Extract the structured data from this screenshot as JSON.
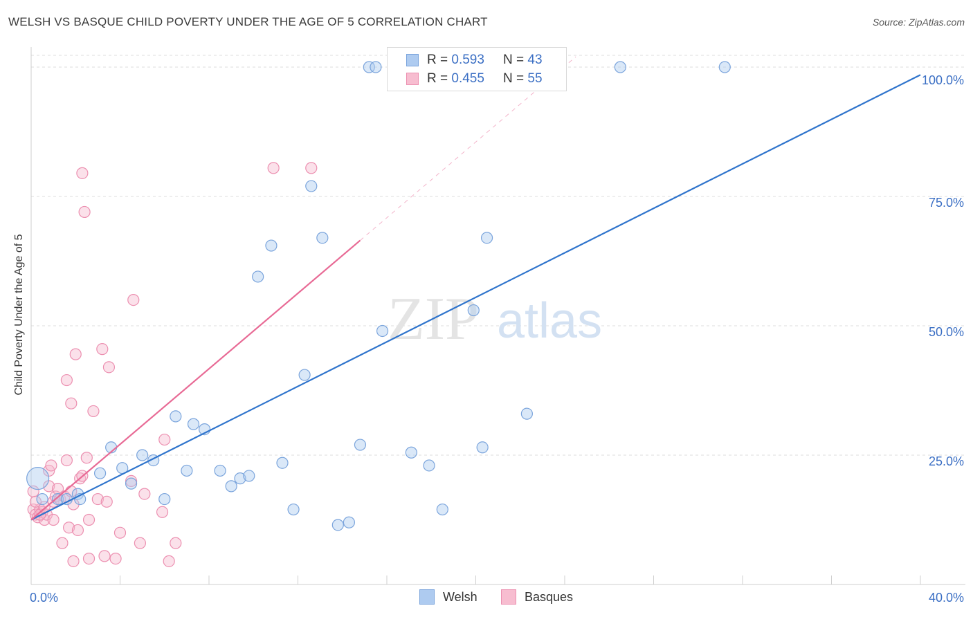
{
  "title": "WELSH VS BASQUE CHILD POVERTY UNDER THE AGE OF 5 CORRELATION CHART",
  "source": "Source: ZipAtlas.com",
  "watermark": {
    "zip": "ZIP",
    "atlas": "atlas"
  },
  "legend": {
    "r_label": "R =",
    "n_label": "N =",
    "welsh": {
      "r": "0.593",
      "n": "43"
    },
    "basques": {
      "r": "0.455",
      "n": "55"
    }
  },
  "colors": {
    "welsh_fill": "#aecbf0",
    "welsh_stroke": "#7aa4dc",
    "welsh_line": "#2f74cc",
    "basques_fill": "#f7bdd0",
    "basques_stroke": "#ec8fb0",
    "basques_line": "#e86a95",
    "axis_text": "#3b6fc4",
    "grid": "#dcdcdc"
  },
  "chart_data": {
    "type": "scatter",
    "title": "WELSH VS BASQUE CHILD POVERTY UNDER THE AGE OF 5 CORRELATION CHART",
    "xlabel": "",
    "ylabel": "Child Poverty Under the Age of 5",
    "xlim": [
      0,
      40
    ],
    "ylim": [
      0,
      100
    ],
    "x_tick_labels": [
      {
        "value": 0,
        "label": "0.0%"
      },
      {
        "value": 40,
        "label": "40.0%"
      }
    ],
    "y_tick_labels": [
      {
        "value": 25,
        "label": "25.0%"
      },
      {
        "value": 50,
        "label": "50.0%"
      },
      {
        "value": 75,
        "label": "75.0%"
      },
      {
        "value": 100,
        "label": "100.0%"
      }
    ],
    "legend_position": "top-center",
    "series": [
      {
        "name": "Welsh",
        "points": [
          [
            0.3,
            20.5
          ],
          [
            0.5,
            16.5
          ],
          [
            1.2,
            16.5
          ],
          [
            1.6,
            16.5
          ],
          [
            2.1,
            17.5
          ],
          [
            2.2,
            16.5
          ],
          [
            3.1,
            21.5
          ],
          [
            3.6,
            26.5
          ],
          [
            4.1,
            22.5
          ],
          [
            4.5,
            19.5
          ],
          [
            5.0,
            25.0
          ],
          [
            5.5,
            24.0
          ],
          [
            6.0,
            16.5
          ],
          [
            6.5,
            32.5
          ],
          [
            7.0,
            22.0
          ],
          [
            7.3,
            31.0
          ],
          [
            7.8,
            30.0
          ],
          [
            8.5,
            22.0
          ],
          [
            9.0,
            19.0
          ],
          [
            9.4,
            20.5
          ],
          [
            9.8,
            21.0
          ],
          [
            10.2,
            59.5
          ],
          [
            10.8,
            65.5
          ],
          [
            11.3,
            23.5
          ],
          [
            11.8,
            14.5
          ],
          [
            12.3,
            40.5
          ],
          [
            12.6,
            77.0
          ],
          [
            13.1,
            67.0
          ],
          [
            13.8,
            11.5
          ],
          [
            14.3,
            12.0
          ],
          [
            14.8,
            27.0
          ],
          [
            15.2,
            100.0
          ],
          [
            15.5,
            100.0
          ],
          [
            15.8,
            49.0
          ],
          [
            17.1,
            25.5
          ],
          [
            17.9,
            23.0
          ],
          [
            18.5,
            14.5
          ],
          [
            19.9,
            53.0
          ],
          [
            20.3,
            26.5
          ],
          [
            20.5,
            67.0
          ],
          [
            22.3,
            33.0
          ],
          [
            26.5,
            100.0
          ],
          [
            31.2,
            100.0
          ]
        ],
        "trend": {
          "x": [
            0,
            40
          ],
          "y": [
            12.5,
            98.5
          ]
        }
      },
      {
        "name": "Basques",
        "points": [
          [
            0.1,
            18.0
          ],
          [
            0.1,
            14.5
          ],
          [
            0.2,
            13.5
          ],
          [
            0.3,
            13.0
          ],
          [
            0.4,
            14.5
          ],
          [
            0.5,
            14.0
          ],
          [
            0.6,
            12.5
          ],
          [
            0.7,
            13.5
          ],
          [
            0.8,
            19.0
          ],
          [
            0.8,
            22.0
          ],
          [
            0.9,
            23.0
          ],
          [
            1.0,
            16.0
          ],
          [
            1.1,
            17.0
          ],
          [
            1.2,
            18.5
          ],
          [
            1.3,
            16.5
          ],
          [
            1.4,
            8.0
          ],
          [
            1.5,
            17.0
          ],
          [
            1.6,
            24.0
          ],
          [
            1.6,
            39.5
          ],
          [
            1.7,
            11.0
          ],
          [
            1.8,
            35.0
          ],
          [
            1.8,
            18.0
          ],
          [
            1.9,
            4.5
          ],
          [
            2.0,
            44.5
          ],
          [
            2.1,
            10.5
          ],
          [
            2.2,
            20.5
          ],
          [
            2.3,
            79.5
          ],
          [
            2.4,
            72.0
          ],
          [
            2.5,
            24.5
          ],
          [
            2.6,
            5.0
          ],
          [
            2.6,
            12.5
          ],
          [
            2.8,
            33.5
          ],
          [
            3.0,
            16.5
          ],
          [
            3.2,
            45.5
          ],
          [
            3.3,
            5.5
          ],
          [
            3.5,
            42.0
          ],
          [
            3.8,
            5.0
          ],
          [
            4.0,
            10.0
          ],
          [
            4.5,
            20.0
          ],
          [
            4.6,
            55.0
          ],
          [
            4.9,
            8.0
          ],
          [
            5.1,
            17.5
          ],
          [
            5.9,
            14.0
          ],
          [
            6.0,
            28.0
          ],
          [
            6.2,
            4.5
          ],
          [
            6.5,
            8.0
          ],
          [
            10.9,
            80.5
          ],
          [
            12.6,
            80.5
          ],
          [
            0.4,
            13.5
          ],
          [
            0.6,
            15.0
          ],
          [
            1.0,
            12.5
          ],
          [
            2.3,
            21.0
          ],
          [
            3.4,
            16.0
          ],
          [
            0.2,
            16.0
          ],
          [
            1.9,
            15.5
          ]
        ],
        "trend": {
          "x": [
            0,
            14.8
          ],
          "y": [
            12.5,
            66.5
          ],
          "dashed_extension": {
            "x": [
              14.8,
              24.5
            ],
            "y": [
              66.5,
              102.0
            ]
          }
        }
      }
    ]
  }
}
